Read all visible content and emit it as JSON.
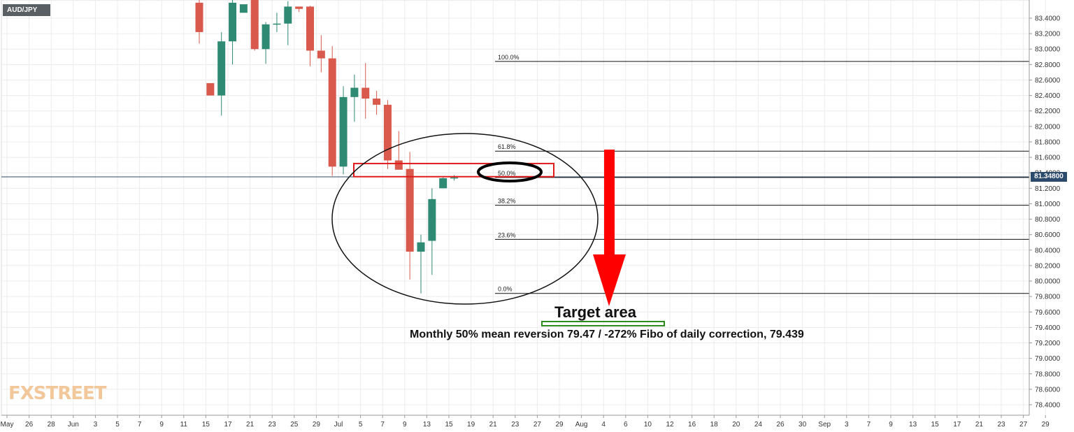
{
  "chart_data": {
    "type": "candlestick",
    "symbol": "AUD/JPY",
    "last_price": "81.34800",
    "ylim": [
      78.3,
      83.5
    ],
    "y_ticks": [
      "83.4000",
      "83.2000",
      "83.0000",
      "82.8000",
      "82.6000",
      "82.4000",
      "82.2000",
      "82.0000",
      "81.8000",
      "81.6000",
      "81.4000",
      "81.2000",
      "81.0000",
      "80.8000",
      "80.6000",
      "80.4000",
      "80.2000",
      "80.0000",
      "79.8000",
      "79.6000",
      "79.4000",
      "79.2000",
      "79.0000",
      "78.8000",
      "78.6000",
      "78.4000"
    ],
    "x_ticks": [
      "May",
      "26",
      "28",
      "Jun",
      "3",
      "5",
      "7",
      "9",
      "11",
      "15",
      "17",
      "21",
      "23",
      "25",
      "29",
      "Jul",
      "5",
      "7",
      "9",
      "13",
      "15",
      "19",
      "21",
      "23",
      "27",
      "29",
      "Aug",
      "4",
      "6",
      "10",
      "12",
      "16",
      "18",
      "20",
      "24",
      "26",
      "30",
      "Sep",
      "3",
      "7",
      "9",
      "13",
      "15",
      "17",
      "21",
      "23",
      "27",
      "29"
    ],
    "candles": [
      {
        "o": 83.6,
        "h": 83.7,
        "l": 83.07,
        "c": 83.22
      },
      {
        "o": 82.56,
        "h": 82.56,
        "l": 82.4,
        "c": 82.4
      },
      {
        "o": 82.4,
        "h": 83.22,
        "l": 82.14,
        "c": 83.1
      },
      {
        "o": 83.1,
        "h": 83.65,
        "l": 82.8,
        "c": 83.6
      },
      {
        "o": 83.47,
        "h": 83.58,
        "l": 83.47,
        "c": 83.58
      },
      {
        "o": 83.82,
        "h": 83.9,
        "l": 82.98,
        "c": 83.0
      },
      {
        "o": 83.0,
        "h": 83.35,
        "l": 82.81,
        "c": 83.32
      },
      {
        "o": 83.33,
        "h": 83.47,
        "l": 83.22,
        "c": 83.33
      },
      {
        "o": 83.33,
        "h": 83.62,
        "l": 83.05,
        "c": 83.55
      },
      {
        "o": 83.55,
        "h": 83.55,
        "l": 83.48,
        "c": 83.52
      },
      {
        "o": 83.55,
        "h": 83.56,
        "l": 82.78,
        "c": 82.98
      },
      {
        "o": 82.98,
        "h": 83.18,
        "l": 82.7,
        "c": 82.88
      },
      {
        "o": 82.88,
        "h": 83.04,
        "l": 81.36,
        "c": 81.48
      },
      {
        "o": 81.48,
        "h": 82.52,
        "l": 81.38,
        "c": 82.38
      },
      {
        "o": 82.38,
        "h": 82.67,
        "l": 82.06,
        "c": 82.5
      },
      {
        "o": 82.5,
        "h": 82.82,
        "l": 82.1,
        "c": 82.36
      },
      {
        "o": 82.36,
        "h": 82.46,
        "l": 82.15,
        "c": 82.28
      },
      {
        "o": 82.28,
        "h": 82.34,
        "l": 81.45,
        "c": 81.56
      },
      {
        "o": 81.56,
        "h": 81.94,
        "l": 81.44,
        "c": 81.44
      },
      {
        "o": 81.45,
        "h": 81.67,
        "l": 80.02,
        "c": 80.38
      },
      {
        "o": 80.38,
        "h": 80.6,
        "l": 79.84,
        "c": 80.5
      },
      {
        "o": 80.52,
        "h": 81.2,
        "l": 80.08,
        "c": 81.06
      },
      {
        "o": 81.2,
        "h": 81.34,
        "l": 81.2,
        "c": 81.33
      },
      {
        "o": 81.33,
        "h": 81.37,
        "l": 81.3,
        "c": 81.34
      }
    ],
    "fibonacci": [
      {
        "label": "100.0%",
        "price": 82.84
      },
      {
        "label": "61.8%",
        "price": 81.68
      },
      {
        "label": "50.0%",
        "price": 81.34
      },
      {
        "label": "38.2%",
        "price": 80.98
      },
      {
        "label": "23.6%",
        "price": 80.54
      },
      {
        "label": "0.0%",
        "price": 79.84
      }
    ],
    "annotations": {
      "target_title": "Target area",
      "target_note": "Monthly 50% mean reversion 79.47 / -272% Fibo of daily correction, 79.439"
    },
    "grid": true,
    "colors": {
      "bull": "#2f8a73",
      "bear": "#d9594c",
      "arrow": "#ff0000",
      "target_box": "#2e8b1e",
      "price_badge": "#2c4a6b"
    }
  },
  "branding": {
    "logo": "FXSTREET"
  }
}
